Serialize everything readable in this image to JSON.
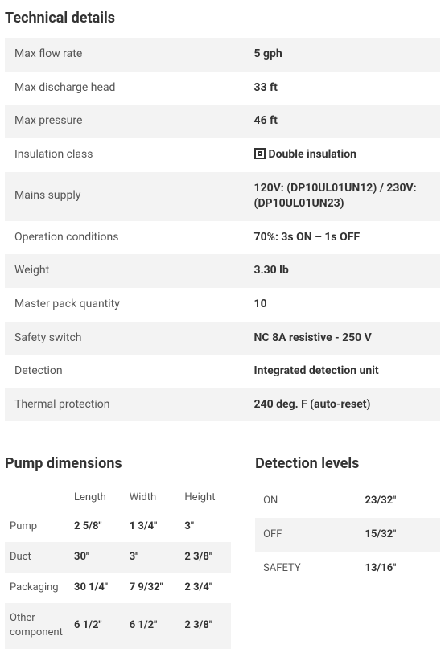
{
  "technical": {
    "title": "Technical details",
    "rows": [
      {
        "label": "Max flow rate",
        "value": "5 gph",
        "icon": null
      },
      {
        "label": "Max discharge head",
        "value": "33 ft",
        "icon": null
      },
      {
        "label": "Max pressure",
        "value": "46 ft",
        "icon": null
      },
      {
        "label": "Insulation class",
        "value": "Double insulation",
        "icon": "double-insulation"
      },
      {
        "label": "Mains supply",
        "value": "120V: (DP10UL01UN12) / 230V: (DP10UL01UN23)",
        "icon": null
      },
      {
        "label": "Operation conditions",
        "value": "70%: 3s ON – 1s OFF",
        "icon": null
      },
      {
        "label": "Weight",
        "value": "3.30 lb",
        "icon": null
      },
      {
        "label": "Master pack quantity",
        "value": "10",
        "icon": null
      },
      {
        "label": "Safety switch",
        "value": "NC 8A resistive - 250 V",
        "icon": null
      },
      {
        "label": "Detection",
        "value": "Integrated detection unit",
        "icon": null
      },
      {
        "label": "Thermal protection",
        "value": "240 deg. F (auto-reset)",
        "icon": null
      }
    ]
  },
  "dimensions": {
    "title": "Pump dimensions",
    "headers": [
      "",
      "Length",
      "Width",
      "Height"
    ],
    "rows": [
      {
        "label": "Pump",
        "length": "2 5/8\"",
        "width": "1 3/4\"",
        "height": "3\""
      },
      {
        "label": "Duct",
        "length": "30\"",
        "width": "3\"",
        "height": "2 3/8\""
      },
      {
        "label": "Packaging",
        "length": "30 1/4\"",
        "width": "7 9/32\"",
        "height": "2 3/4\""
      },
      {
        "label": "Other component",
        "length": "6 1/2\"",
        "width": "6 1/2\"",
        "height": "2 3/8\""
      }
    ]
  },
  "detection": {
    "title": "Detection levels",
    "rows": [
      {
        "label": "ON",
        "value": "23/32\""
      },
      {
        "label": "OFF",
        "value": "15/32\""
      },
      {
        "label": "SAFETY",
        "value": "13/16\""
      }
    ]
  },
  "colors": {
    "stripe": "#f3f3f3",
    "text": "#3a3a3a",
    "label": "#555555",
    "value": "#333333"
  }
}
